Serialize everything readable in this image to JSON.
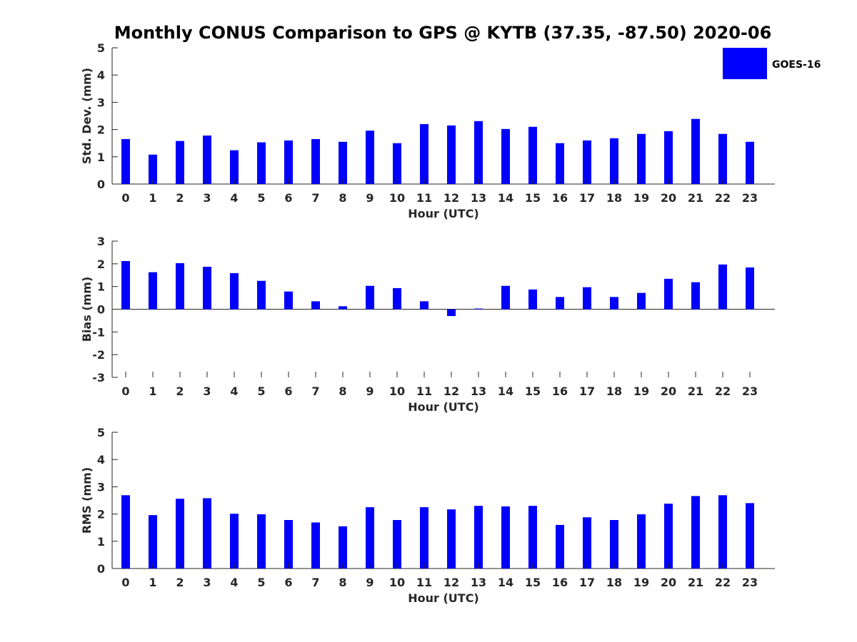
{
  "chart_data": {
    "title": "Monthly CONUS Comparison to GPS @ KYTB (37.35, -87.50) 2020-06",
    "bar_color": "#0000ff",
    "legend": {
      "entries": [
        "GOES-16"
      ],
      "placement": "top-right"
    },
    "panels": [
      {
        "type": "bar",
        "ylabel": "Std. Dev. (mm)",
        "xlabel": "Hour (UTC)",
        "ylim": [
          0,
          5
        ],
        "yticks": [
          0,
          1,
          2,
          3,
          4,
          5
        ],
        "categories": [
          "0",
          "1",
          "2",
          "3",
          "4",
          "5",
          "6",
          "7",
          "8",
          "9",
          "10",
          "11",
          "12",
          "13",
          "14",
          "15",
          "16",
          "17",
          "18",
          "19",
          "20",
          "21",
          "22",
          "23"
        ],
        "series": [
          {
            "name": "GOES-16",
            "values": [
              1.65,
              1.08,
              1.58,
              1.78,
              1.24,
              1.53,
              1.6,
              1.65,
              1.55,
              1.96,
              1.5,
              2.2,
              2.15,
              2.31,
              2.02,
              2.1,
              1.5,
              1.6,
              1.68,
              1.84,
              1.94,
              2.39,
              1.84,
              1.55
            ]
          }
        ]
      },
      {
        "type": "bar",
        "ylabel": "Bias (mm)",
        "xlabel": "Hour (UTC)",
        "ylim": [
          -3,
          3
        ],
        "yticks": [
          -3,
          -2,
          -1,
          0,
          1,
          2,
          3
        ],
        "categories": [
          "0",
          "1",
          "2",
          "3",
          "4",
          "5",
          "6",
          "7",
          "8",
          "9",
          "10",
          "11",
          "12",
          "13",
          "14",
          "15",
          "16",
          "17",
          "18",
          "19",
          "20",
          "21",
          "22",
          "23"
        ],
        "series": [
          {
            "name": "GOES-16",
            "values": [
              2.12,
              1.63,
              2.03,
              1.87,
              1.59,
              1.25,
              0.78,
              0.35,
              0.13,
              1.03,
              0.93,
              0.35,
              -0.3,
              0.03,
              1.03,
              0.87,
              0.54,
              0.97,
              0.54,
              0.72,
              1.34,
              1.19,
              1.97,
              1.84
            ]
          }
        ]
      },
      {
        "type": "bar",
        "ylabel": "RMS (mm)",
        "xlabel": "Hour (UTC)",
        "ylim": [
          0,
          5
        ],
        "yticks": [
          0,
          1,
          2,
          3,
          4,
          5
        ],
        "categories": [
          "0",
          "1",
          "2",
          "3",
          "4",
          "5",
          "6",
          "7",
          "8",
          "9",
          "10",
          "11",
          "12",
          "13",
          "14",
          "15",
          "16",
          "17",
          "18",
          "19",
          "20",
          "21",
          "22",
          "23"
        ],
        "series": [
          {
            "name": "GOES-16",
            "values": [
              2.69,
              1.96,
              2.56,
              2.58,
              2.01,
              1.99,
              1.78,
              1.69,
              1.55,
              2.25,
              1.78,
              2.25,
              2.17,
              2.3,
              2.28,
              2.3,
              1.6,
              1.88,
              1.78,
              1.99,
              2.38,
              2.66,
              2.69,
              2.4
            ]
          }
        ]
      }
    ]
  }
}
